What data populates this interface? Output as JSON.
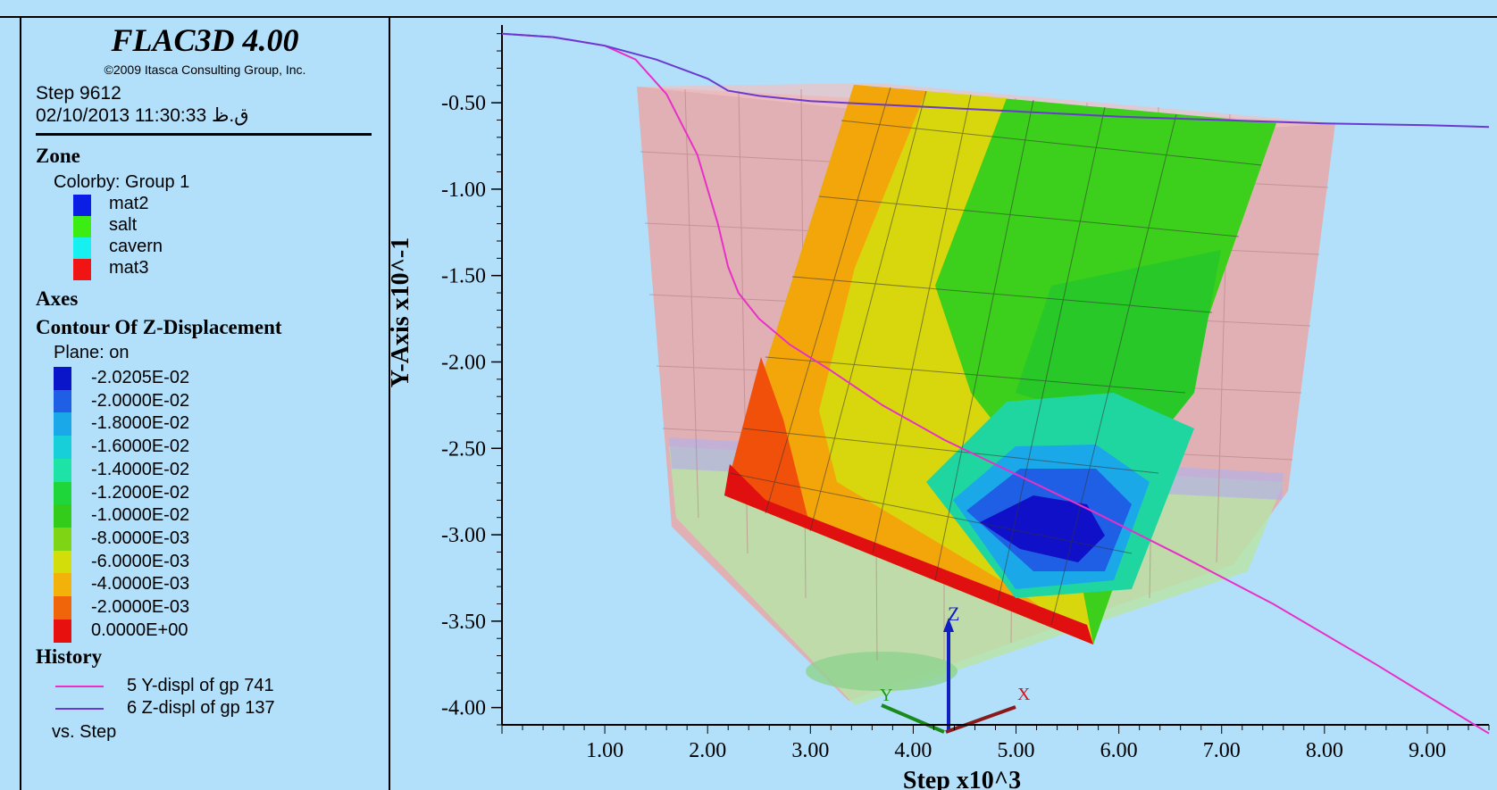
{
  "header": {
    "title": "FLAC3D 4.00",
    "copyright": "©2009 Itasca Consulting Group, Inc.",
    "step": "Step 9612",
    "datetime": "02/10/2013 11:30:33 ق.ظ"
  },
  "zone": {
    "heading": "Zone",
    "colorby": "Colorby: Group 1",
    "groups": [
      {
        "label": "mat2",
        "color": "#0a1ee6"
      },
      {
        "label": "salt",
        "color": "#3ced14"
      },
      {
        "label": "cavern",
        "color": "#16f0f0"
      },
      {
        "label": "mat3",
        "color": "#f01414"
      }
    ]
  },
  "axes": {
    "heading": "Axes"
  },
  "contour": {
    "heading": "Contour Of Z-Displacement",
    "plane": "Plane: on",
    "levels": [
      {
        "label": "-2.0205E-02",
        "color": "#0a14c8"
      },
      {
        "label": "-2.0000E-02",
        "color": "#1f5fe6"
      },
      {
        "label": "-1.8000E-02",
        "color": "#1aa8e8"
      },
      {
        "label": "-1.6000E-02",
        "color": "#17cfd9"
      },
      {
        "label": "-1.4000E-02",
        "color": "#1ee3a6"
      },
      {
        "label": "-1.2000E-02",
        "color": "#1fd63a"
      },
      {
        "label": "-1.0000E-02",
        "color": "#34cc1a"
      },
      {
        "label": "-8.0000E-03",
        "color": "#7fd414"
      },
      {
        "label": "-6.0000E-03",
        "color": "#d2dd0a"
      },
      {
        "label": "-4.0000E-03",
        "color": "#f2b20a"
      },
      {
        "label": "-2.0000E-03",
        "color": "#f0640a"
      },
      {
        "label": "0.0000E+00",
        "color": "#e80f0f"
      }
    ]
  },
  "history": {
    "heading": "History",
    "items": [
      {
        "label": "5 Y-displ of gp 741",
        "color": "#e830c8"
      },
      {
        "label": "6 Z-displ of gp 137",
        "color": "#6a3ad0"
      }
    ],
    "vs": "vs. Step"
  },
  "chart_data": {
    "type": "line",
    "xlabel": "Step x10^3",
    "ylabel": "Y-Axis x10^-1",
    "xlim": [
      0,
      9.6
    ],
    "ylim": [
      -4.1,
      -0.05
    ],
    "x_ticks": [
      "1.00",
      "2.00",
      "3.00",
      "4.00",
      "5.00",
      "6.00",
      "7.00",
      "8.00",
      "9.00"
    ],
    "y_ticks": [
      "-0.50",
      "-1.00",
      "-1.50",
      "-2.00",
      "-2.50",
      "-3.00",
      "-3.50",
      "-4.00"
    ],
    "series": [
      {
        "name": "5 Y-displ of gp 741",
        "color": "#e830c8",
        "x": [
          0.0,
          0.5,
          1.0,
          1.3,
          1.6,
          1.9,
          2.1,
          2.2,
          2.3,
          2.5,
          2.8,
          3.2,
          3.7,
          4.3,
          5.0,
          5.8,
          6.6,
          7.5,
          8.5,
          9.6
        ],
        "y": [
          -0.1,
          -0.12,
          -0.17,
          -0.25,
          -0.45,
          -0.8,
          -1.2,
          -1.45,
          -1.6,
          -1.75,
          -1.9,
          -2.05,
          -2.25,
          -2.45,
          -2.65,
          -2.88,
          -3.12,
          -3.4,
          -3.75,
          -4.15
        ]
      },
      {
        "name": "6 Z-displ of gp 137",
        "color": "#6a3ad0",
        "x": [
          0.0,
          0.5,
          1.0,
          1.5,
          2.0,
          2.2,
          2.5,
          3.0,
          4.0,
          5.0,
          6.0,
          7.0,
          8.0,
          9.0,
          9.6
        ],
        "y": [
          -0.1,
          -0.12,
          -0.17,
          -0.25,
          -0.36,
          -0.43,
          -0.46,
          -0.49,
          -0.52,
          -0.55,
          -0.58,
          -0.6,
          -0.62,
          -0.63,
          -0.64
        ]
      }
    ]
  },
  "triad": {
    "x": "X",
    "y": "Y",
    "z": "Z"
  }
}
